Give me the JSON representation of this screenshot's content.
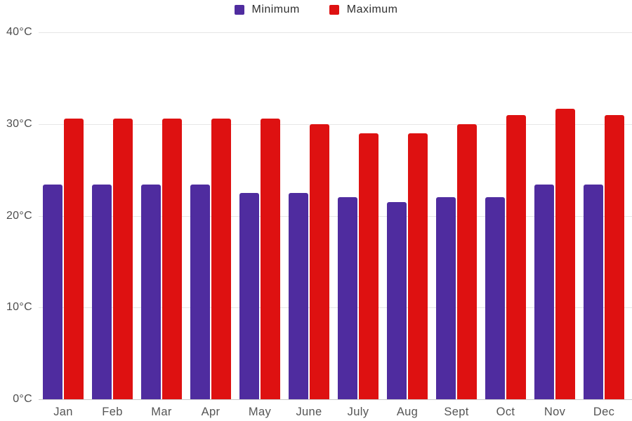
{
  "legend": {
    "items": [
      {
        "label": "Minimum",
        "color": "#4F2C9F"
      },
      {
        "label": "Maximum",
        "color": "#DE1111"
      }
    ]
  },
  "chart_data": {
    "type": "bar",
    "title": "",
    "xlabel": "",
    "ylabel": "",
    "categories": [
      "Jan",
      "Feb",
      "Mar",
      "Apr",
      "May",
      "June",
      "July",
      "Aug",
      "Sept",
      "Oct",
      "Nov",
      "Dec"
    ],
    "series": [
      {
        "name": "Minimum",
        "color": "#4F2C9F",
        "values": [
          23.4,
          23.4,
          23.4,
          23.4,
          22.5,
          22.5,
          22.0,
          21.5,
          22.0,
          22.0,
          23.4,
          23.4
        ]
      },
      {
        "name": "Maximum",
        "color": "#DE1111",
        "values": [
          30.6,
          30.6,
          30.6,
          30.6,
          30.6,
          30.0,
          29.0,
          29.0,
          30.0,
          31.0,
          31.7,
          31.0
        ]
      }
    ],
    "ylim": [
      0,
      40
    ],
    "y_ticks": [
      0,
      10,
      20,
      30,
      40
    ],
    "y_tick_labels": [
      "0°C",
      "10°C",
      "20°C",
      "30°C",
      "40°C"
    ],
    "grid": true,
    "legend_position": "top",
    "colors": {
      "gridline": "#e6e6e6",
      "axis_line": "#c9c9c9",
      "tick_text": "#4d4d4d",
      "category_text": "#555555"
    }
  }
}
